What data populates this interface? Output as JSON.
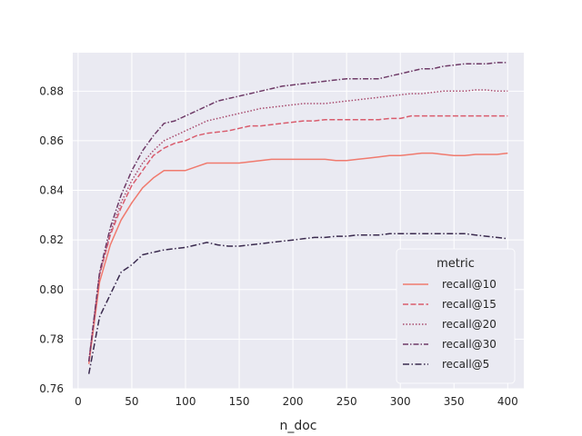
{
  "chart_data": {
    "type": "line",
    "xlabel": "n_doc",
    "ylabel": "",
    "xlim": [
      -5,
      415
    ],
    "ylim": [
      0.76,
      0.8955
    ],
    "xticks": [
      0,
      50,
      100,
      150,
      200,
      250,
      300,
      350,
      400
    ],
    "yticks": [
      0.76,
      0.78,
      0.8,
      0.82,
      0.84,
      0.86,
      0.88
    ],
    "grid": true,
    "legend": {
      "title": "metric",
      "placement": "lower-right"
    },
    "x": [
      10,
      20,
      30,
      40,
      50,
      60,
      70,
      80,
      90,
      100,
      110,
      120,
      130,
      140,
      150,
      160,
      170,
      180,
      190,
      200,
      210,
      220,
      230,
      240,
      250,
      260,
      270,
      280,
      290,
      300,
      310,
      320,
      330,
      340,
      350,
      360,
      370,
      380,
      390,
      400
    ],
    "series": [
      {
        "name": "recall@10",
        "color": "#f07a6e",
        "dash": "",
        "values": [
          0.77,
          0.803,
          0.818,
          0.828,
          0.835,
          0.841,
          0.845,
          0.848,
          0.848,
          0.848,
          0.8495,
          0.851,
          0.851,
          0.851,
          0.851,
          0.8515,
          0.852,
          0.8525,
          0.8525,
          0.8525,
          0.8525,
          0.8525,
          0.8525,
          0.852,
          0.852,
          0.8525,
          0.853,
          0.8535,
          0.854,
          0.854,
          0.8545,
          0.855,
          0.855,
          0.8545,
          0.854,
          0.854,
          0.8545,
          0.8545,
          0.8545,
          0.855
        ]
      },
      {
        "name": "recall@15",
        "color": "#d95c6d",
        "dash": "6,2.5",
        "values": [
          0.771,
          0.806,
          0.822,
          0.833,
          0.842,
          0.848,
          0.854,
          0.857,
          0.859,
          0.86,
          0.862,
          0.863,
          0.8635,
          0.864,
          0.865,
          0.866,
          0.866,
          0.8665,
          0.867,
          0.8675,
          0.868,
          0.868,
          0.8685,
          0.8685,
          0.8685,
          0.8685,
          0.8685,
          0.8685,
          0.869,
          0.869,
          0.87,
          0.87,
          0.87,
          0.87,
          0.87,
          0.87,
          0.87,
          0.87,
          0.87,
          0.87
        ]
      },
      {
        "name": "recall@20",
        "color": "#a84b6e",
        "dash": "1.5,2",
        "values": [
          0.771,
          0.806,
          0.823,
          0.835,
          0.844,
          0.851,
          0.856,
          0.86,
          0.862,
          0.864,
          0.866,
          0.868,
          0.869,
          0.87,
          0.871,
          0.872,
          0.873,
          0.8735,
          0.874,
          0.8745,
          0.875,
          0.875,
          0.875,
          0.8755,
          0.876,
          0.8765,
          0.877,
          0.8775,
          0.878,
          0.8785,
          0.879,
          0.879,
          0.8795,
          0.88,
          0.88,
          0.88,
          0.8805,
          0.8805,
          0.88,
          0.88
        ]
      },
      {
        "name": "recall@30",
        "color": "#6e3a67",
        "dash": "6,2,1.5,2",
        "values": [
          0.771,
          0.807,
          0.825,
          0.838,
          0.848,
          0.856,
          0.862,
          0.867,
          0.868,
          0.87,
          0.872,
          0.874,
          0.876,
          0.877,
          0.878,
          0.879,
          0.88,
          0.881,
          0.882,
          0.8825,
          0.883,
          0.8835,
          0.884,
          0.8845,
          0.885,
          0.885,
          0.885,
          0.885,
          0.886,
          0.887,
          0.888,
          0.889,
          0.889,
          0.89,
          0.8905,
          0.891,
          0.891,
          0.891,
          0.8915,
          0.8915
        ]
      },
      {
        "name": "recall@5",
        "color": "#3a2a4e",
        "dash": "7,2.5,1.5,2.5",
        "values": [
          0.766,
          0.789,
          0.798,
          0.807,
          0.81,
          0.814,
          0.815,
          0.816,
          0.8165,
          0.817,
          0.818,
          0.819,
          0.818,
          0.8175,
          0.8175,
          0.818,
          0.8185,
          0.819,
          0.8195,
          0.82,
          0.8205,
          0.821,
          0.821,
          0.8215,
          0.8215,
          0.822,
          0.822,
          0.822,
          0.8225,
          0.8225,
          0.8225,
          0.8225,
          0.8225,
          0.8225,
          0.8225,
          0.8225,
          0.822,
          0.8215,
          0.821,
          0.8205
        ]
      }
    ]
  }
}
